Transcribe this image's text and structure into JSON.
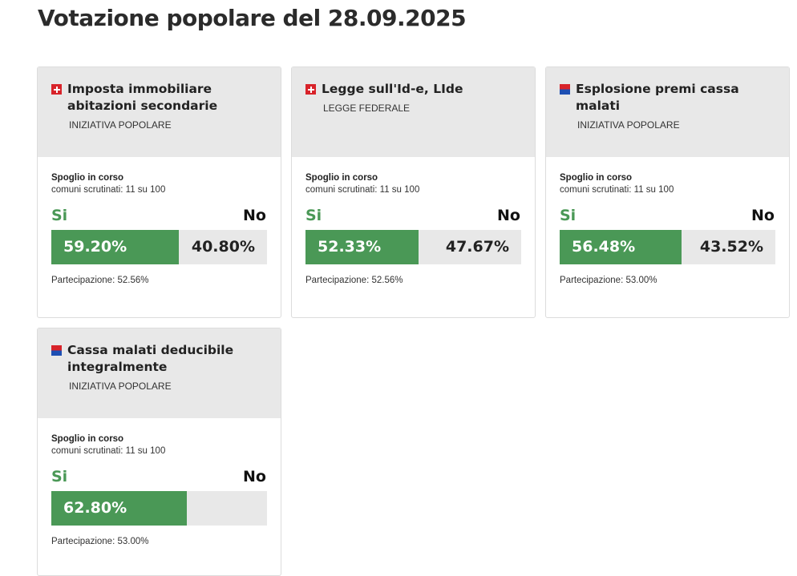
{
  "page": {
    "title": "Votazione popolare del 28.09.2025"
  },
  "labels": {
    "yes": "Si",
    "no": "No"
  },
  "cards": [
    {
      "flag": "swiss-flag-icon",
      "title": "Imposta immobiliare abitazioni secondarie",
      "type": "INIZIATIVA POPOLARE",
      "status": "Spoglio in corso",
      "counted": "comuni scrutinati: 11 su 100",
      "yes_pct": "59.20%",
      "no_pct": "40.80%",
      "yes_value": 59.2,
      "participation": "Partecipazione: 52.56%"
    },
    {
      "flag": "swiss-flag-icon",
      "title": "Legge sull'Id-e, LIde",
      "type": "LEGGE FEDERALE",
      "status": "Spoglio in corso",
      "counted": "comuni scrutinati: 11 su 100",
      "yes_pct": "52.33%",
      "no_pct": "47.67%",
      "yes_value": 52.33,
      "participation": "Partecipazione: 52.56%"
    },
    {
      "flag": "ticino-flag-icon",
      "title": "Esplosione premi cassa malati",
      "type": "INIZIATIVA POPOLARE",
      "status": "Spoglio in corso",
      "counted": "comuni scrutinati: 11 su 100",
      "yes_pct": "56.48%",
      "no_pct": "43.52%",
      "yes_value": 56.48,
      "participation": "Partecipazione: 53.00%"
    },
    {
      "flag": "ticino-flag-icon",
      "title": "Cassa malati deducibile integralmente",
      "type": "INIZIATIVA POPOLARE",
      "status": "Spoglio in corso",
      "counted": "comuni scrutinati: 11 su 100",
      "yes_pct": "62.80%",
      "no_pct": "",
      "yes_value": 62.8,
      "participation": "Partecipazione: 53.00%"
    }
  ]
}
